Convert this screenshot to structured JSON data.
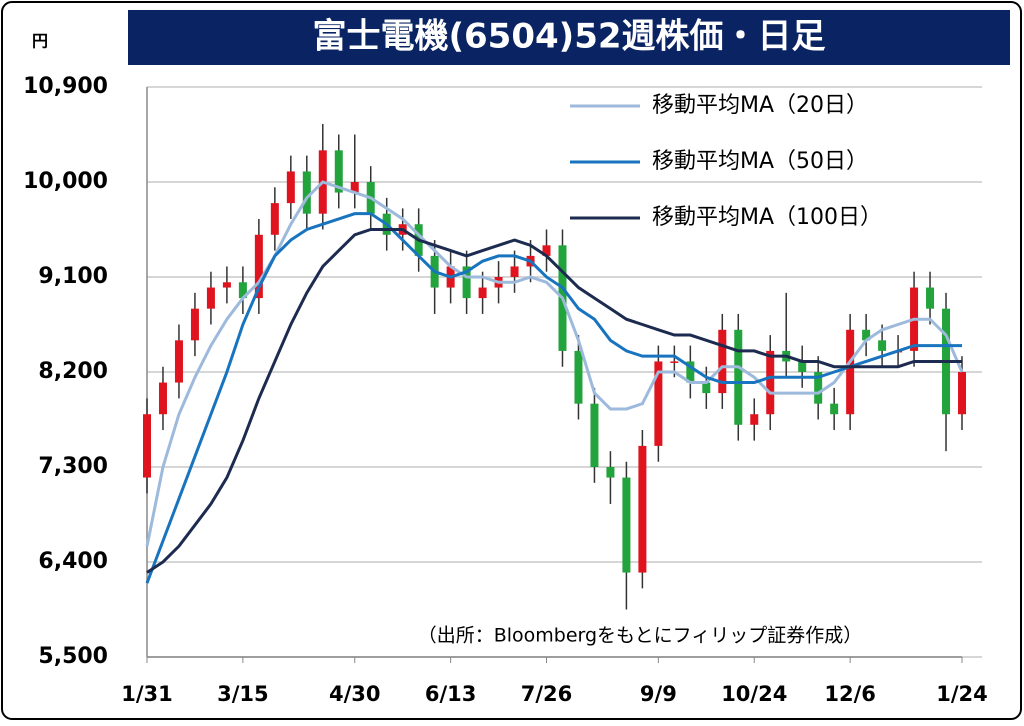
{
  "chart_data": {
    "type": "candlestick",
    "title": "富士電機(6504)52週株価・日足",
    "y_unit": "円",
    "source": "（出所：Bloombergをもとにフィリップ証券作成）",
    "categories": [
      "1/31",
      null,
      null,
      null,
      null,
      null,
      "3/15",
      null,
      null,
      null,
      null,
      null,
      null,
      "4/30",
      null,
      null,
      null,
      null,
      null,
      "6/13",
      null,
      null,
      null,
      null,
      null,
      "7/26",
      null,
      null,
      null,
      null,
      null,
      null,
      "9/9",
      null,
      null,
      null,
      null,
      null,
      "10/24",
      null,
      null,
      null,
      null,
      null,
      "12/6",
      null,
      null,
      null,
      null,
      null,
      null,
      "1/24"
    ],
    "open": [
      7200,
      7800,
      8100,
      8500,
      8800,
      9000,
      9050,
      8900,
      9500,
      9800,
      10100,
      9700,
      10300,
      9900,
      10000,
      9700,
      9500,
      9600,
      9300,
      9000,
      9200,
      8900,
      9000,
      9100,
      9200,
      9300,
      9400,
      8400,
      7900,
      7300,
      7200,
      6300,
      7500,
      8300,
      8300,
      8100,
      8000,
      8600,
      7700,
      7800,
      8400,
      8300,
      8200,
      7900,
      7800,
      8600,
      8500,
      8400,
      8400,
      9000,
      8800,
      7800
    ],
    "high": [
      7950,
      8250,
      8650,
      8950,
      9150,
      9200,
      9200,
      9650,
      9950,
      10250,
      10250,
      10550,
      10450,
      10450,
      10150,
      9850,
      9750,
      9750,
      9450,
      9350,
      9350,
      9150,
      9250,
      9350,
      9450,
      9550,
      9550,
      8550,
      8050,
      7450,
      7350,
      7650,
      8450,
      8450,
      8450,
      8250,
      8750,
      8750,
      7950,
      8550,
      8950,
      8450,
      8350,
      8050,
      8750,
      8750,
      8650,
      8550,
      9150,
      9150,
      8950,
      8350
    ],
    "low": [
      7050,
      7650,
      7950,
      8350,
      8650,
      8850,
      8750,
      8750,
      9350,
      9650,
      9550,
      9550,
      9750,
      9750,
      9550,
      9350,
      9350,
      9150,
      8750,
      8850,
      8750,
      8750,
      8850,
      8950,
      9050,
      9150,
      8250,
      7750,
      7150,
      6950,
      5950,
      6150,
      7350,
      8150,
      7950,
      7850,
      7850,
      7550,
      7550,
      7650,
      8150,
      8050,
      7750,
      7650,
      7650,
      8350,
      8250,
      8250,
      8250,
      8650,
      7450,
      7650
    ],
    "close": [
      7800,
      8100,
      8500,
      8800,
      9000,
      9050,
      8900,
      9500,
      9800,
      10100,
      9700,
      10300,
      9900,
      10000,
      9700,
      9500,
      9600,
      9300,
      9000,
      9200,
      8900,
      9000,
      9100,
      9200,
      9300,
      9400,
      8400,
      7900,
      7300,
      7200,
      6300,
      7500,
      8300,
      8300,
      8100,
      8000,
      8600,
      7700,
      7800,
      8400,
      8300,
      8200,
      7900,
      7800,
      8600,
      8500,
      8400,
      8400,
      9000,
      8800,
      7800,
      8200
    ],
    "up_color": "#e0141e",
    "down_color": "#22a33c",
    "series": [
      {
        "name": "移動平均MA（20日）",
        "color": "#9db9dc",
        "values": [
          6550,
          7300,
          7800,
          8150,
          8450,
          8700,
          8900,
          9050,
          9300,
          9600,
          9850,
          10000,
          9950,
          9900,
          9850,
          9750,
          9650,
          9500,
          9350,
          9200,
          9100,
          9100,
          9050,
          9050,
          9100,
          9050,
          8900,
          8500,
          8000,
          7850,
          7850,
          7900,
          8200,
          8200,
          8100,
          8100,
          8250,
          8250,
          8150,
          8000,
          8000,
          8000,
          8000,
          8100,
          8300,
          8500,
          8600,
          8650,
          8700,
          8700,
          8550,
          8200
        ]
      },
      {
        "name": "移動平均MA（50日）",
        "color": "#1874bf",
        "values": [
          6200,
          6600,
          7000,
          7400,
          7800,
          8200,
          8650,
          9000,
          9300,
          9450,
          9550,
          9600,
          9650,
          9700,
          9700,
          9600,
          9450,
          9300,
          9150,
          9100,
          9150,
          9250,
          9300,
          9300,
          9250,
          9100,
          9000,
          8800,
          8700,
          8500,
          8400,
          8350,
          8350,
          8350,
          8250,
          8150,
          8100,
          8100,
          8100,
          8150,
          8150,
          8150,
          8150,
          8200,
          8250,
          8300,
          8350,
          8400,
          8450,
          8450,
          8450,
          8450
        ]
      },
      {
        "name": "移動平均MA（100日）",
        "color": "#1c2b4f",
        "values": [
          6300,
          6400,
          6550,
          6750,
          6950,
          7200,
          7550,
          7950,
          8300,
          8650,
          8950,
          9200,
          9350,
          9500,
          9550,
          9550,
          9550,
          9450,
          9400,
          9350,
          9300,
          9350,
          9400,
          9450,
          9400,
          9300,
          9150,
          9000,
          8900,
          8800,
          8700,
          8650,
          8600,
          8550,
          8550,
          8500,
          8450,
          8400,
          8400,
          8350,
          8350,
          8300,
          8300,
          8250,
          8250,
          8250,
          8250,
          8250,
          8300,
          8300,
          8300,
          8300
        ]
      }
    ],
    "ylim": [
      5500,
      10900
    ],
    "yticks": [
      {
        "value": 5500,
        "label": "5,500"
      },
      {
        "value": 6400,
        "label": "6,400"
      },
      {
        "value": 7300,
        "label": "7,300"
      },
      {
        "value": 8200,
        "label": "8,200"
      },
      {
        "value": 9100,
        "label": "9,100"
      },
      {
        "value": 10000,
        "label": "10,000"
      },
      {
        "value": 10900,
        "label": "10,900"
      }
    ],
    "grid": true,
    "legend": "top-right"
  }
}
